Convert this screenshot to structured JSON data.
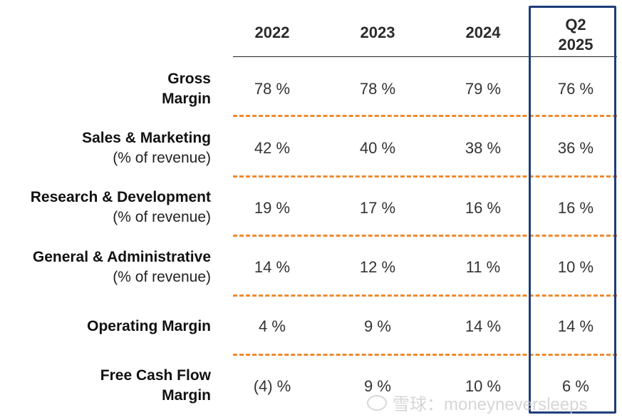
{
  "chart_data": {
    "type": "table",
    "columns": [
      "2022",
      "2023",
      "2024",
      "Q2 2025"
    ],
    "column_lines": [
      [
        "2022"
      ],
      [
        "2023"
      ],
      [
        "2024"
      ],
      [
        "Q2",
        "2025"
      ]
    ],
    "rows": [
      {
        "label": [
          "Gross",
          "Margin"
        ],
        "values": [
          "78 %",
          "78 %",
          "79 %",
          "76 %"
        ]
      },
      {
        "label": [
          "Sales & Marketing",
          "(% of revenue)"
        ],
        "values": [
          "42 %",
          "40 %",
          "38 %",
          "36 %"
        ]
      },
      {
        "label": [
          "Research & Development",
          "(% of revenue)"
        ],
        "values": [
          "19 %",
          "17 %",
          "16 %",
          "16 %"
        ]
      },
      {
        "label": [
          "General & Administrative",
          "(% of revenue)"
        ],
        "values": [
          "14 %",
          "12 %",
          "11 %",
          "10 %"
        ]
      },
      {
        "label": [
          "Operating Margin"
        ],
        "values": [
          "4 %",
          "9 %",
          "14 %",
          "14 %"
        ]
      },
      {
        "label": [
          "Free Cash Flow",
          "Margin"
        ],
        "values": [
          "(4) %",
          "9 %",
          "10 %",
          "6 %"
        ]
      }
    ],
    "highlighted_column": "Q2 2025",
    "numeric": {
      "Gross Margin": [
        78,
        78,
        79,
        76
      ],
      "Sales & Marketing": [
        42,
        40,
        38,
        36
      ],
      "Research & Development": [
        19,
        17,
        16,
        16
      ],
      "General & Administrative": [
        14,
        12,
        11,
        10
      ],
      "Operating Margin": [
        4,
        9,
        14,
        14
      ],
      "Free Cash Flow Margin": [
        -4,
        9,
        10,
        6
      ]
    }
  },
  "colors": {
    "divider": "#ef8a2e",
    "highlight_border": "#1f3d7a",
    "header_rule": "#222222"
  },
  "watermark": {
    "text": "雪球：moneyneversleeps"
  }
}
